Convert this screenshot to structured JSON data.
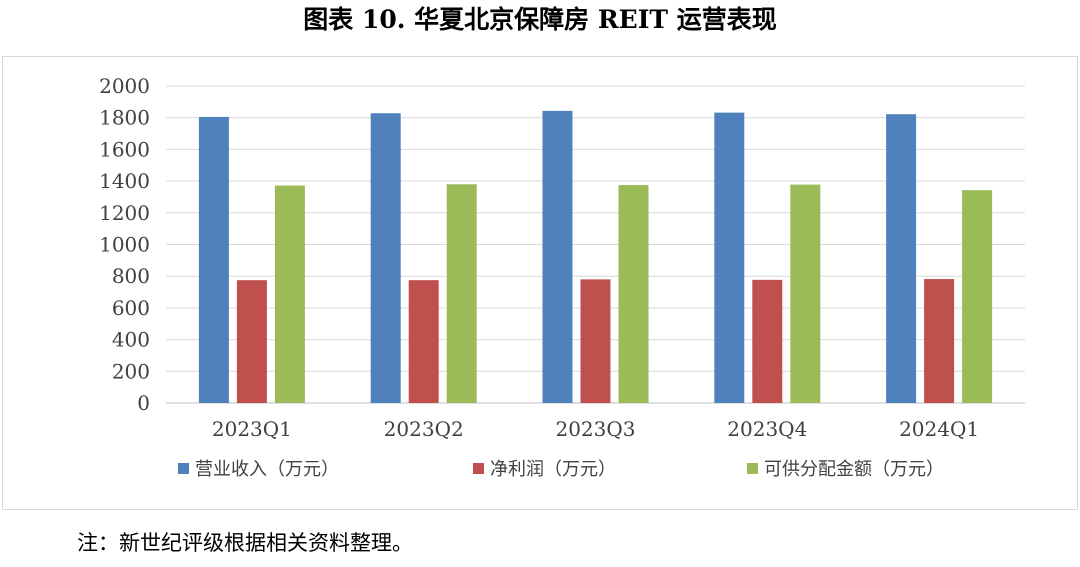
{
  "title": "图表 10.   华夏北京保障房 REIT 运营表现",
  "note": "注：新世纪评级根据相关资料整理。",
  "colors": {
    "blue": "#4f81bd",
    "red": "#c0504d",
    "green": "#9bbb59",
    "grid": "#d9d9d9",
    "axis": "#595959"
  },
  "chart_data": {
    "type": "bar",
    "categories": [
      "2023Q1",
      "2023Q2",
      "2023Q3",
      "2023Q4",
      "2024Q1"
    ],
    "series": [
      {
        "name": "营业收入（万元）",
        "color": "#4f81bd",
        "values": [
          1805,
          1828,
          1843,
          1832,
          1822
        ]
      },
      {
        "name": "净利润（万元）",
        "color": "#c0504d",
        "values": [
          775,
          775,
          780,
          777,
          782
        ]
      },
      {
        "name": "可供分配金额（万元）",
        "color": "#9bbb59",
        "values": [
          1372,
          1380,
          1375,
          1378,
          1343
        ]
      }
    ],
    "ylim": [
      0,
      2000
    ],
    "yticks": [
      0,
      200,
      400,
      600,
      800,
      1000,
      1200,
      1400,
      1600,
      1800,
      2000
    ],
    "grid": true,
    "legend": "bottom"
  }
}
